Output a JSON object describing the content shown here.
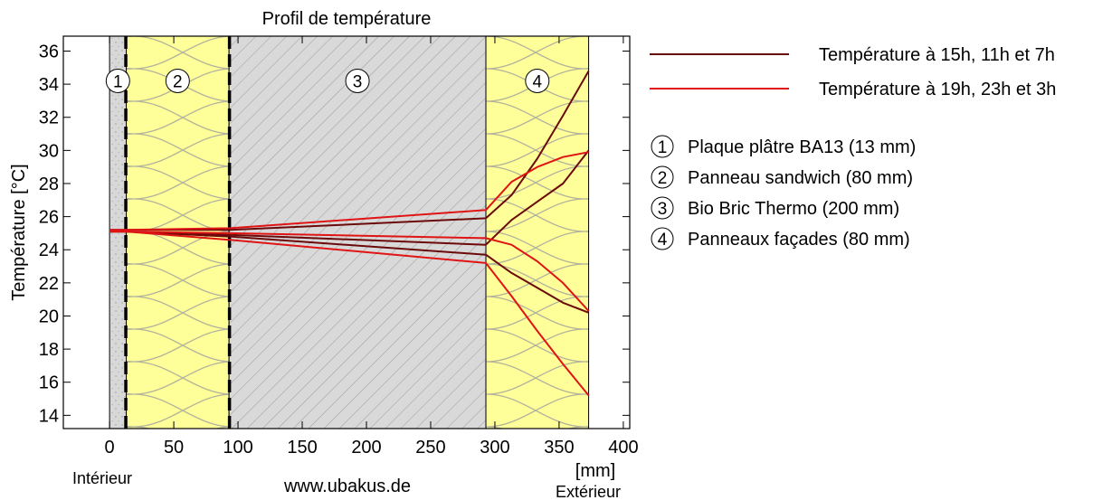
{
  "colors": {
    "dark_series": "#6b0a0a",
    "light_series": "#e01414",
    "insulation": "#ffff99",
    "plaster": "#d8d8d8",
    "brick": "#d9d9d9",
    "hatch": "#a0a0a0",
    "insulation_pattern": "#b0b0a0"
  },
  "chart_data": {
    "type": "line",
    "title": "Profil de température",
    "ylabel": "Température [°C]",
    "xlabel": "[mm]",
    "xlim": [
      -36,
      405
    ],
    "ylim": [
      13.2,
      36.9
    ],
    "x_ticks": [
      0,
      50,
      100,
      150,
      200,
      250,
      300,
      350,
      400
    ],
    "y_ticks": [
      14,
      16,
      18,
      20,
      22,
      24,
      26,
      28,
      30,
      32,
      34,
      36
    ],
    "grid": false,
    "legend_position": "right",
    "layers": [
      {
        "id": 1,
        "label": "Plaque plâtre BA13 (13 mm)",
        "x0": 0,
        "x1": 13,
        "kind": "plaster"
      },
      {
        "id": 2,
        "label": "Panneau sandwich (80 mm)",
        "x0": 13,
        "x1": 93,
        "kind": "insulation"
      },
      {
        "id": 3,
        "label": "Bio Bric Thermo (200 mm)",
        "x0": 93,
        "x1": 293,
        "kind": "brick"
      },
      {
        "id": 4,
        "label": "Panneaux façades (80 mm)",
        "x0": 293,
        "x1": 373,
        "kind": "insulation"
      }
    ],
    "layer_number_y": 34.2,
    "series": [
      {
        "name": "Température à 15h, 11h et 7h",
        "color_key": "dark_series",
        "lines": [
          {
            "x": [
              0,
              13,
              93,
              293,
              313,
              333,
              353,
              373
            ],
            "y": [
              25.2,
              25.2,
              25.2,
              25.9,
              27.3,
              29.5,
              32.1,
              34.8
            ]
          },
          {
            "x": [
              0,
              13,
              93,
              293,
              313,
              333,
              353,
              373
            ],
            "y": [
              25.1,
              25.1,
              24.9,
              24.3,
              25.8,
              26.9,
              28.0,
              30.0
            ]
          },
          {
            "x": [
              0,
              13,
              93,
              293,
              313,
              333,
              353,
              373
            ],
            "y": [
              25.1,
              25.1,
              24.8,
              23.7,
              22.6,
              21.7,
              20.8,
              20.2
            ]
          }
        ]
      },
      {
        "name": "Température à 19h, 23h et 3h",
        "color_key": "light_series",
        "lines": [
          {
            "x": [
              0,
              13,
              93,
              293,
              313,
              333,
              353,
              373
            ],
            "y": [
              25.2,
              25.2,
              25.3,
              26.4,
              28.1,
              29.0,
              29.6,
              29.9
            ]
          },
          {
            "x": [
              0,
              13,
              93,
              293,
              313,
              333,
              353,
              373
            ],
            "y": [
              25.1,
              25.1,
              25.0,
              24.7,
              24.3,
              23.3,
              22.0,
              20.3
            ]
          },
          {
            "x": [
              0,
              13,
              93,
              293,
              313,
              333,
              353,
              373
            ],
            "y": [
              25.1,
              25.1,
              24.6,
              23.2,
              21.2,
              19.1,
              17.1,
              15.2
            ]
          }
        ]
      }
    ]
  },
  "annotations": {
    "interior": "Intérieur",
    "exterior": "Extérieur",
    "website": "www.ubakus.de"
  }
}
